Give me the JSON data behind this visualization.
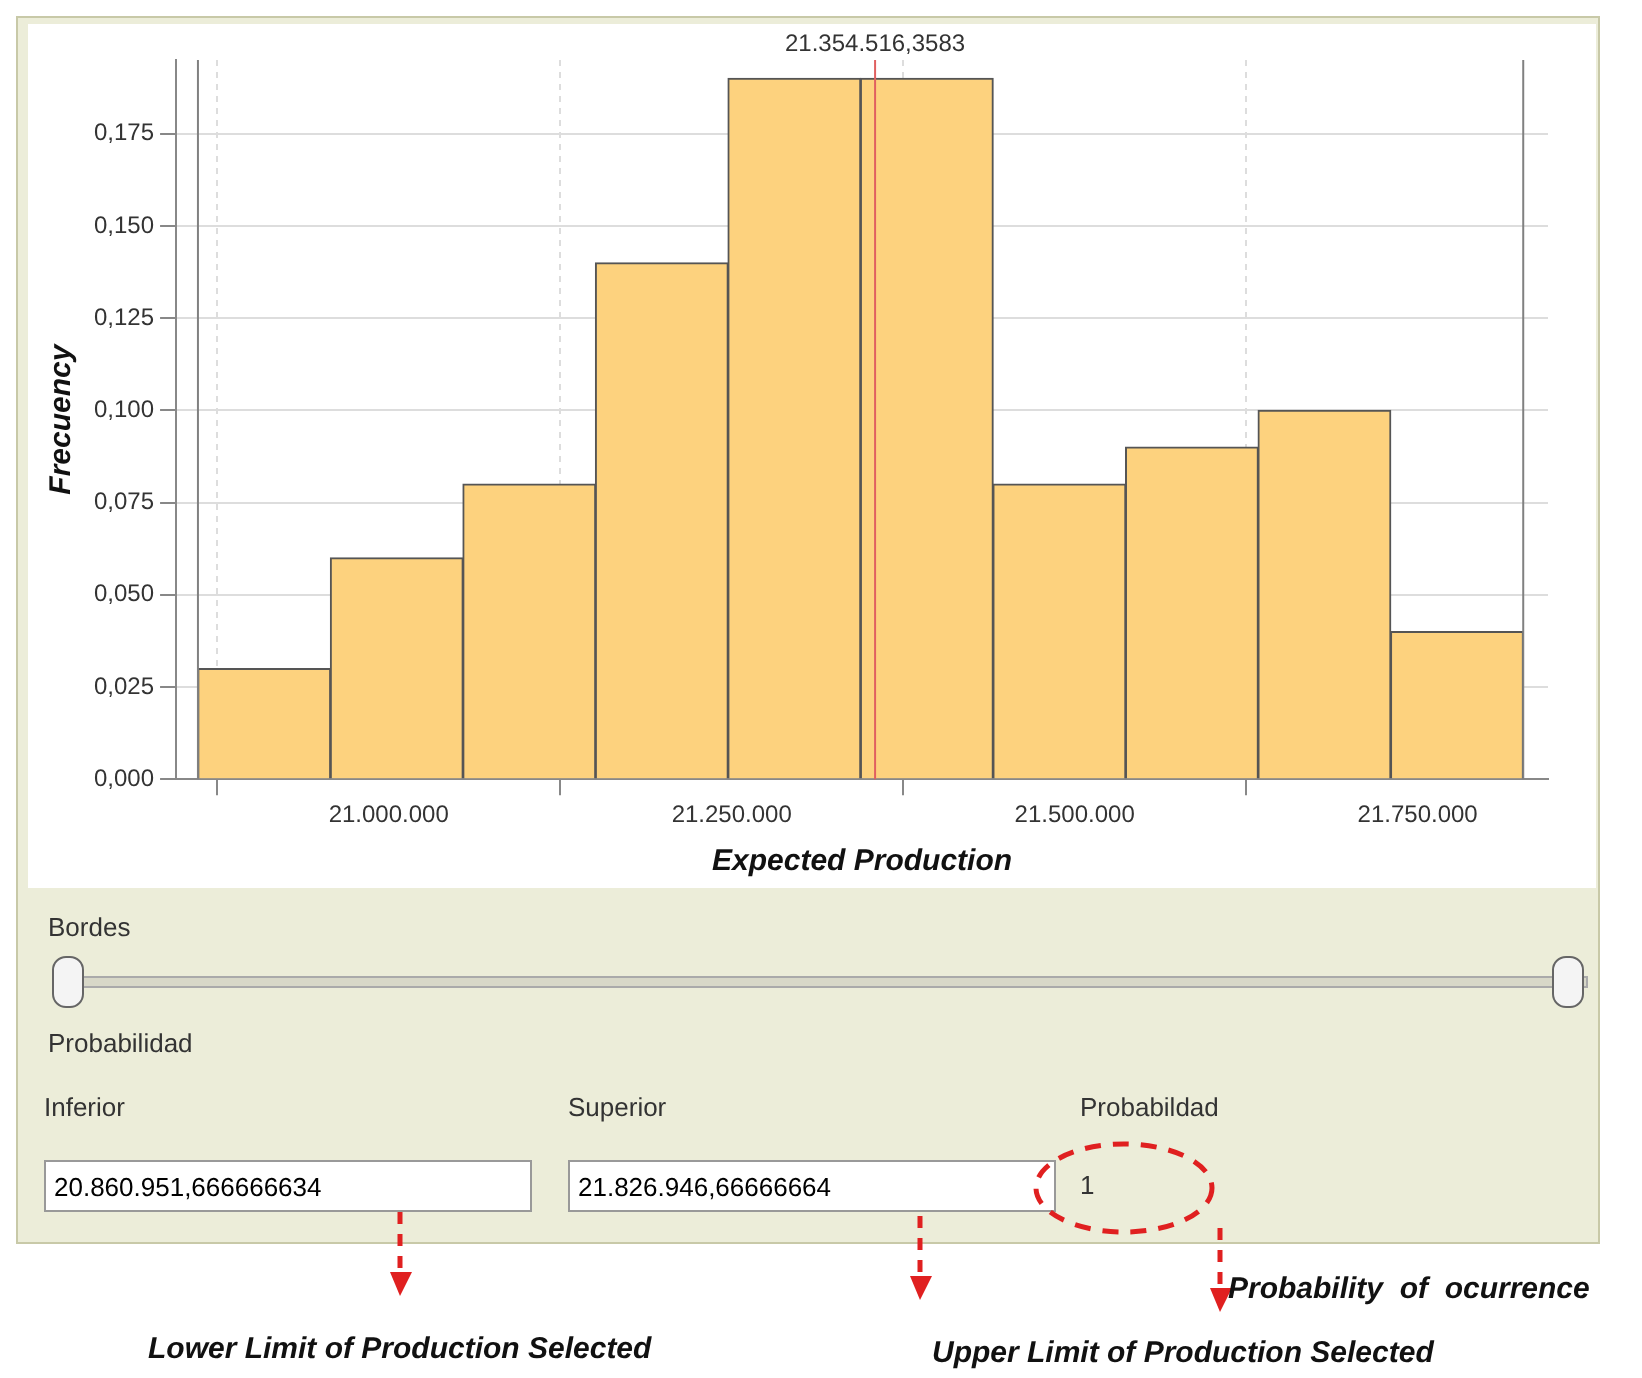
{
  "chart_data": {
    "type": "histogram",
    "xlabel": "Expected Production",
    "ylabel": "Frecuency",
    "bins": [
      20860951.67,
      20957551.17,
      21054150.67,
      21150750.17,
      21247349.67,
      21343949.17,
      21440548.67,
      21537148.17,
      21633747.67,
      21730347.17,
      21826946.67
    ],
    "values": [
      0.03,
      0.06,
      0.08,
      0.14,
      0.19,
      0.19,
      0.08,
      0.09,
      0.1,
      0.04
    ],
    "color": "#fdd27e",
    "xlim": [
      20845000,
      21845000
    ],
    "xticks": [
      {
        "value": 21000000,
        "label": "21.000.000"
      },
      {
        "value": 21250000,
        "label": "21.250.000"
      },
      {
        "value": 21500000,
        "label": "21.500.000"
      },
      {
        "value": 21750000,
        "label": "21.750.000"
      }
    ],
    "ylim": [
      0,
      0.195
    ],
    "yticks": [
      {
        "value": 0,
        "label": "0,000"
      },
      {
        "value": 0.025,
        "label": "0,025"
      },
      {
        "value": 0.05,
        "label": "0,050"
      },
      {
        "value": 0.075,
        "label": "0,075"
      },
      {
        "value": 0.1,
        "label": "0,100"
      },
      {
        "value": 0.125,
        "label": "0,125"
      },
      {
        "value": 0.15,
        "label": "0,150"
      },
      {
        "value": 0.175,
        "label": "0,175"
      }
    ],
    "grid": true,
    "ref_lines": [
      {
        "axis": "x",
        "value": 21354516.3583,
        "label": "21.354.516,3583",
        "color": "#e06060"
      },
      {
        "axis": "x",
        "value": 20860951.67,
        "color": "#808080"
      },
      {
        "axis": "x",
        "value": 21826946.67,
        "color": "#808080"
      }
    ],
    "annotations": [
      "Bordes",
      "Probabilidad",
      "Inferior",
      "Superior",
      "Probabildad",
      "20.860.951,666666634",
      "21.826.946,66666664",
      "1",
      "Lower Limit of Production Selected",
      "Upper Limit of Production Selected",
      "Probability  of  ocurrence"
    ]
  }
}
